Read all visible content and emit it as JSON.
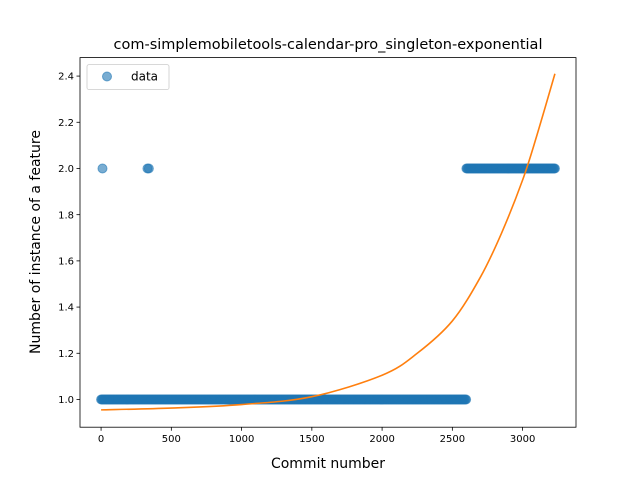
{
  "chart_data": {
    "type": "scatter",
    "title": "com-simplemobiletools-calendar-pro_singleton-exponential",
    "xlabel": "Commit number",
    "ylabel": "Number of instance of a feature",
    "xlim": [
      -150,
      3380
    ],
    "ylim": [
      0.88,
      2.48
    ],
    "xticks": [
      0,
      500,
      1000,
      1500,
      2000,
      2500,
      3000
    ],
    "xtick_labels": [
      "0",
      "500",
      "1000",
      "1500",
      "2000",
      "2500",
      "3000"
    ],
    "yticks": [
      1.0,
      1.2,
      1.4,
      1.6,
      1.8,
      2.0,
      2.2,
      2.4
    ],
    "ytick_labels": [
      "1.0",
      "1.2",
      "1.4",
      "1.6",
      "1.8",
      "2.0",
      "2.2",
      "2.4"
    ],
    "grid": false,
    "legend": {
      "position": "top-left",
      "entries": [
        "data"
      ]
    },
    "series": [
      {
        "name": "data",
        "kind": "scatter",
        "color": "#1f77b4",
        "segments": [
          {
            "x_start": 0,
            "x_end": 2600,
            "y": 1.0
          },
          {
            "x_start": 2600,
            "x_end": 3230,
            "y": 2.0
          }
        ],
        "points": [
          {
            "x": 10,
            "y": 2.0
          },
          {
            "x": 330,
            "y": 2.0
          },
          {
            "x": 340,
            "y": 2.0
          }
        ]
      },
      {
        "kind": "line",
        "color": "#ff7f0e",
        "points": [
          {
            "x": 0,
            "y": 0.955
          },
          {
            "x": 500,
            "y": 0.963
          },
          {
            "x": 1000,
            "y": 0.978
          },
          {
            "x": 1500,
            "y": 1.012
          },
          {
            "x": 2000,
            "y": 1.105
          },
          {
            "x": 2250,
            "y": 1.2
          },
          {
            "x": 2500,
            "y": 1.34
          },
          {
            "x": 2700,
            "y": 1.53
          },
          {
            "x": 2850,
            "y": 1.72
          },
          {
            "x": 3000,
            "y": 1.95
          },
          {
            "x": 3100,
            "y": 2.14
          },
          {
            "x": 3230,
            "y": 2.41
          }
        ]
      }
    ]
  }
}
